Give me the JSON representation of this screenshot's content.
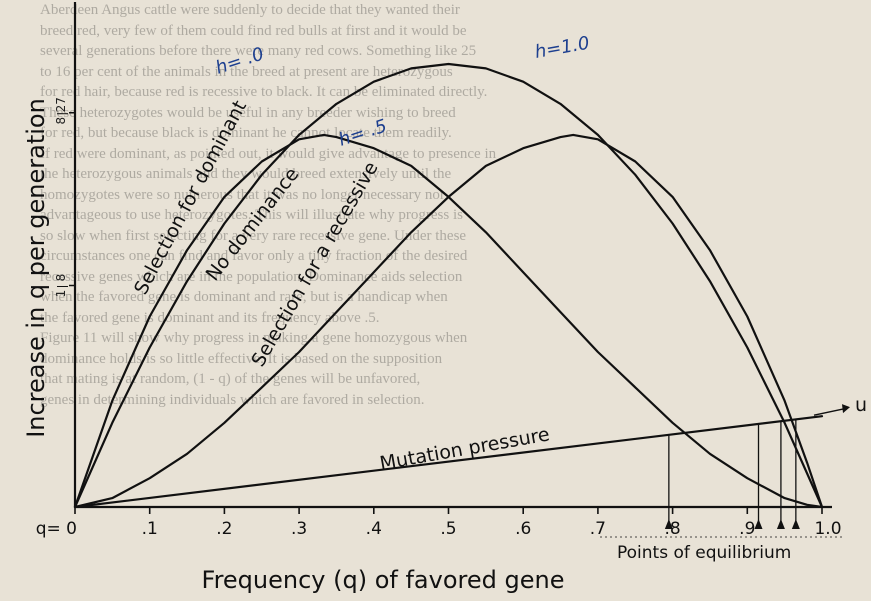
{
  "background_text": [
    "Aberdeen Angus cattle were suddenly to decide that they wanted their",
    "breed red, very few of them could find red bulls at first and it would be",
    "several generations before there were many red cows. Something like 25",
    "to 16 per cent of the animals in the breed at present are heterozygous",
    "for red hair, because red is recessive to black. It can be eliminated directly.",
    "These heterozygotes would be useful in any breeder wishing to breed",
    "for red, but because black is dominant he cannot locate them readily.",
    "If red were dominant, as pointed out, it would give advantage to presence in",
    "the heterozygous animals and they would breed extensively until the",
    "homozygotes were so numerous that it was no longer necessary nor",
    "advantageous to use heterozygotes. This will illustrate why progress is",
    "so slow when first selecting for a very rare recessive gene. Under these",
    "circumstances one can find and favor only a tiny fraction of the desired",
    "recessive genes which are in the population. Dominance aids selection",
    "when the favored gene is dominant and rare, but is a handicap when",
    "the favored gene is dominant and its frequency above .5.",
    "Figure 11 will show why progress in making a gene homozygous when",
    "dominance holds is so little effective. It is based on the supposition",
    "that mating is at random, (1 - q) of the genes will be unfavored,",
    "genes in determining individuals which are favored in selection."
  ],
  "colors": {
    "ink": "#111111",
    "annotation_blue": "#1d3f8f",
    "paper": "#e8e2d6"
  },
  "chart_data": {
    "type": "line",
    "xlabel": "Frequency (q) of favored gene",
    "ylabel": "Increase in q per generation",
    "xlim": [
      0,
      1
    ],
    "ylim": [
      0,
      1
    ],
    "x_ticks": [
      {
        "value": 0,
        "label": "q= 0"
      },
      {
        "value": 0.1,
        "label": ".1"
      },
      {
        "value": 0.2,
        "label": ".2"
      },
      {
        "value": 0.3,
        "label": ".3"
      },
      {
        "value": 0.4,
        "label": ".4"
      },
      {
        "value": 0.5,
        "label": ".5"
      },
      {
        "value": 0.6,
        "label": ".6"
      },
      {
        "value": 0.7,
        "label": ".7"
      },
      {
        "value": 0.8,
        "label": ".8"
      },
      {
        "value": 0.9,
        "label": ".9"
      },
      {
        "value": 1.0,
        "label": "1.0"
      }
    ],
    "y_ticks": [
      {
        "value": 0.89,
        "num": "8",
        "den": "27",
        "symbol": "÷"
      },
      {
        "value": 0.5,
        "num": "1",
        "den": "8"
      }
    ],
    "series": [
      {
        "key": "dominant",
        "name": "Selection for dominant",
        "h_label": "h= .0",
        "x": [
          0,
          0.05,
          0.1,
          0.15,
          0.2,
          0.25,
          0.3,
          0.333,
          0.35,
          0.4,
          0.45,
          0.5,
          0.55,
          0.6,
          0.65,
          0.7,
          0.75,
          0.8,
          0.85,
          0.9,
          0.95,
          0.98,
          1.0
        ],
        "y": [
          0,
          0.24,
          0.43,
          0.58,
          0.7,
          0.78,
          0.83,
          0.84,
          0.835,
          0.81,
          0.77,
          0.7,
          0.62,
          0.53,
          0.44,
          0.35,
          0.27,
          0.19,
          0.12,
          0.065,
          0.02,
          0.005,
          0
        ]
      },
      {
        "key": "nodominance",
        "name": "No dominance",
        "h_label": "h= .5",
        "x": [
          0,
          0.05,
          0.1,
          0.15,
          0.2,
          0.25,
          0.3,
          0.35,
          0.4,
          0.45,
          0.5,
          0.55,
          0.6,
          0.65,
          0.7,
          0.75,
          0.8,
          0.85,
          0.9,
          0.95,
          1.0
        ],
        "y": [
          0,
          0.19,
          0.36,
          0.51,
          0.64,
          0.75,
          0.84,
          0.91,
          0.96,
          0.99,
          1.0,
          0.99,
          0.96,
          0.91,
          0.84,
          0.75,
          0.64,
          0.51,
          0.36,
          0.19,
          0
        ]
      },
      {
        "key": "recessive",
        "name": "Selection for a recessive",
        "h_label": "h=1.0",
        "x": [
          0,
          0.05,
          0.1,
          0.15,
          0.2,
          0.25,
          0.3,
          0.35,
          0.4,
          0.45,
          0.5,
          0.55,
          0.6,
          0.65,
          0.667,
          0.7,
          0.75,
          0.8,
          0.85,
          0.9,
          0.95,
          0.98,
          1.0
        ],
        "y": [
          0,
          0.02,
          0.065,
          0.12,
          0.19,
          0.27,
          0.35,
          0.44,
          0.53,
          0.62,
          0.7,
          0.77,
          0.81,
          0.835,
          0.84,
          0.83,
          0.78,
          0.7,
          0.58,
          0.43,
          0.24,
          0.1,
          0
        ]
      },
      {
        "key": "mutation",
        "name": "Mutation pressure",
        "side_label": "u",
        "x": [
          0,
          1.0
        ],
        "y": [
          0,
          0.205
        ]
      }
    ],
    "equilibrium_label": "Points of equilibrium",
    "equilibrium_points": [
      0.795,
      0.915,
      0.945,
      0.965
    ]
  }
}
